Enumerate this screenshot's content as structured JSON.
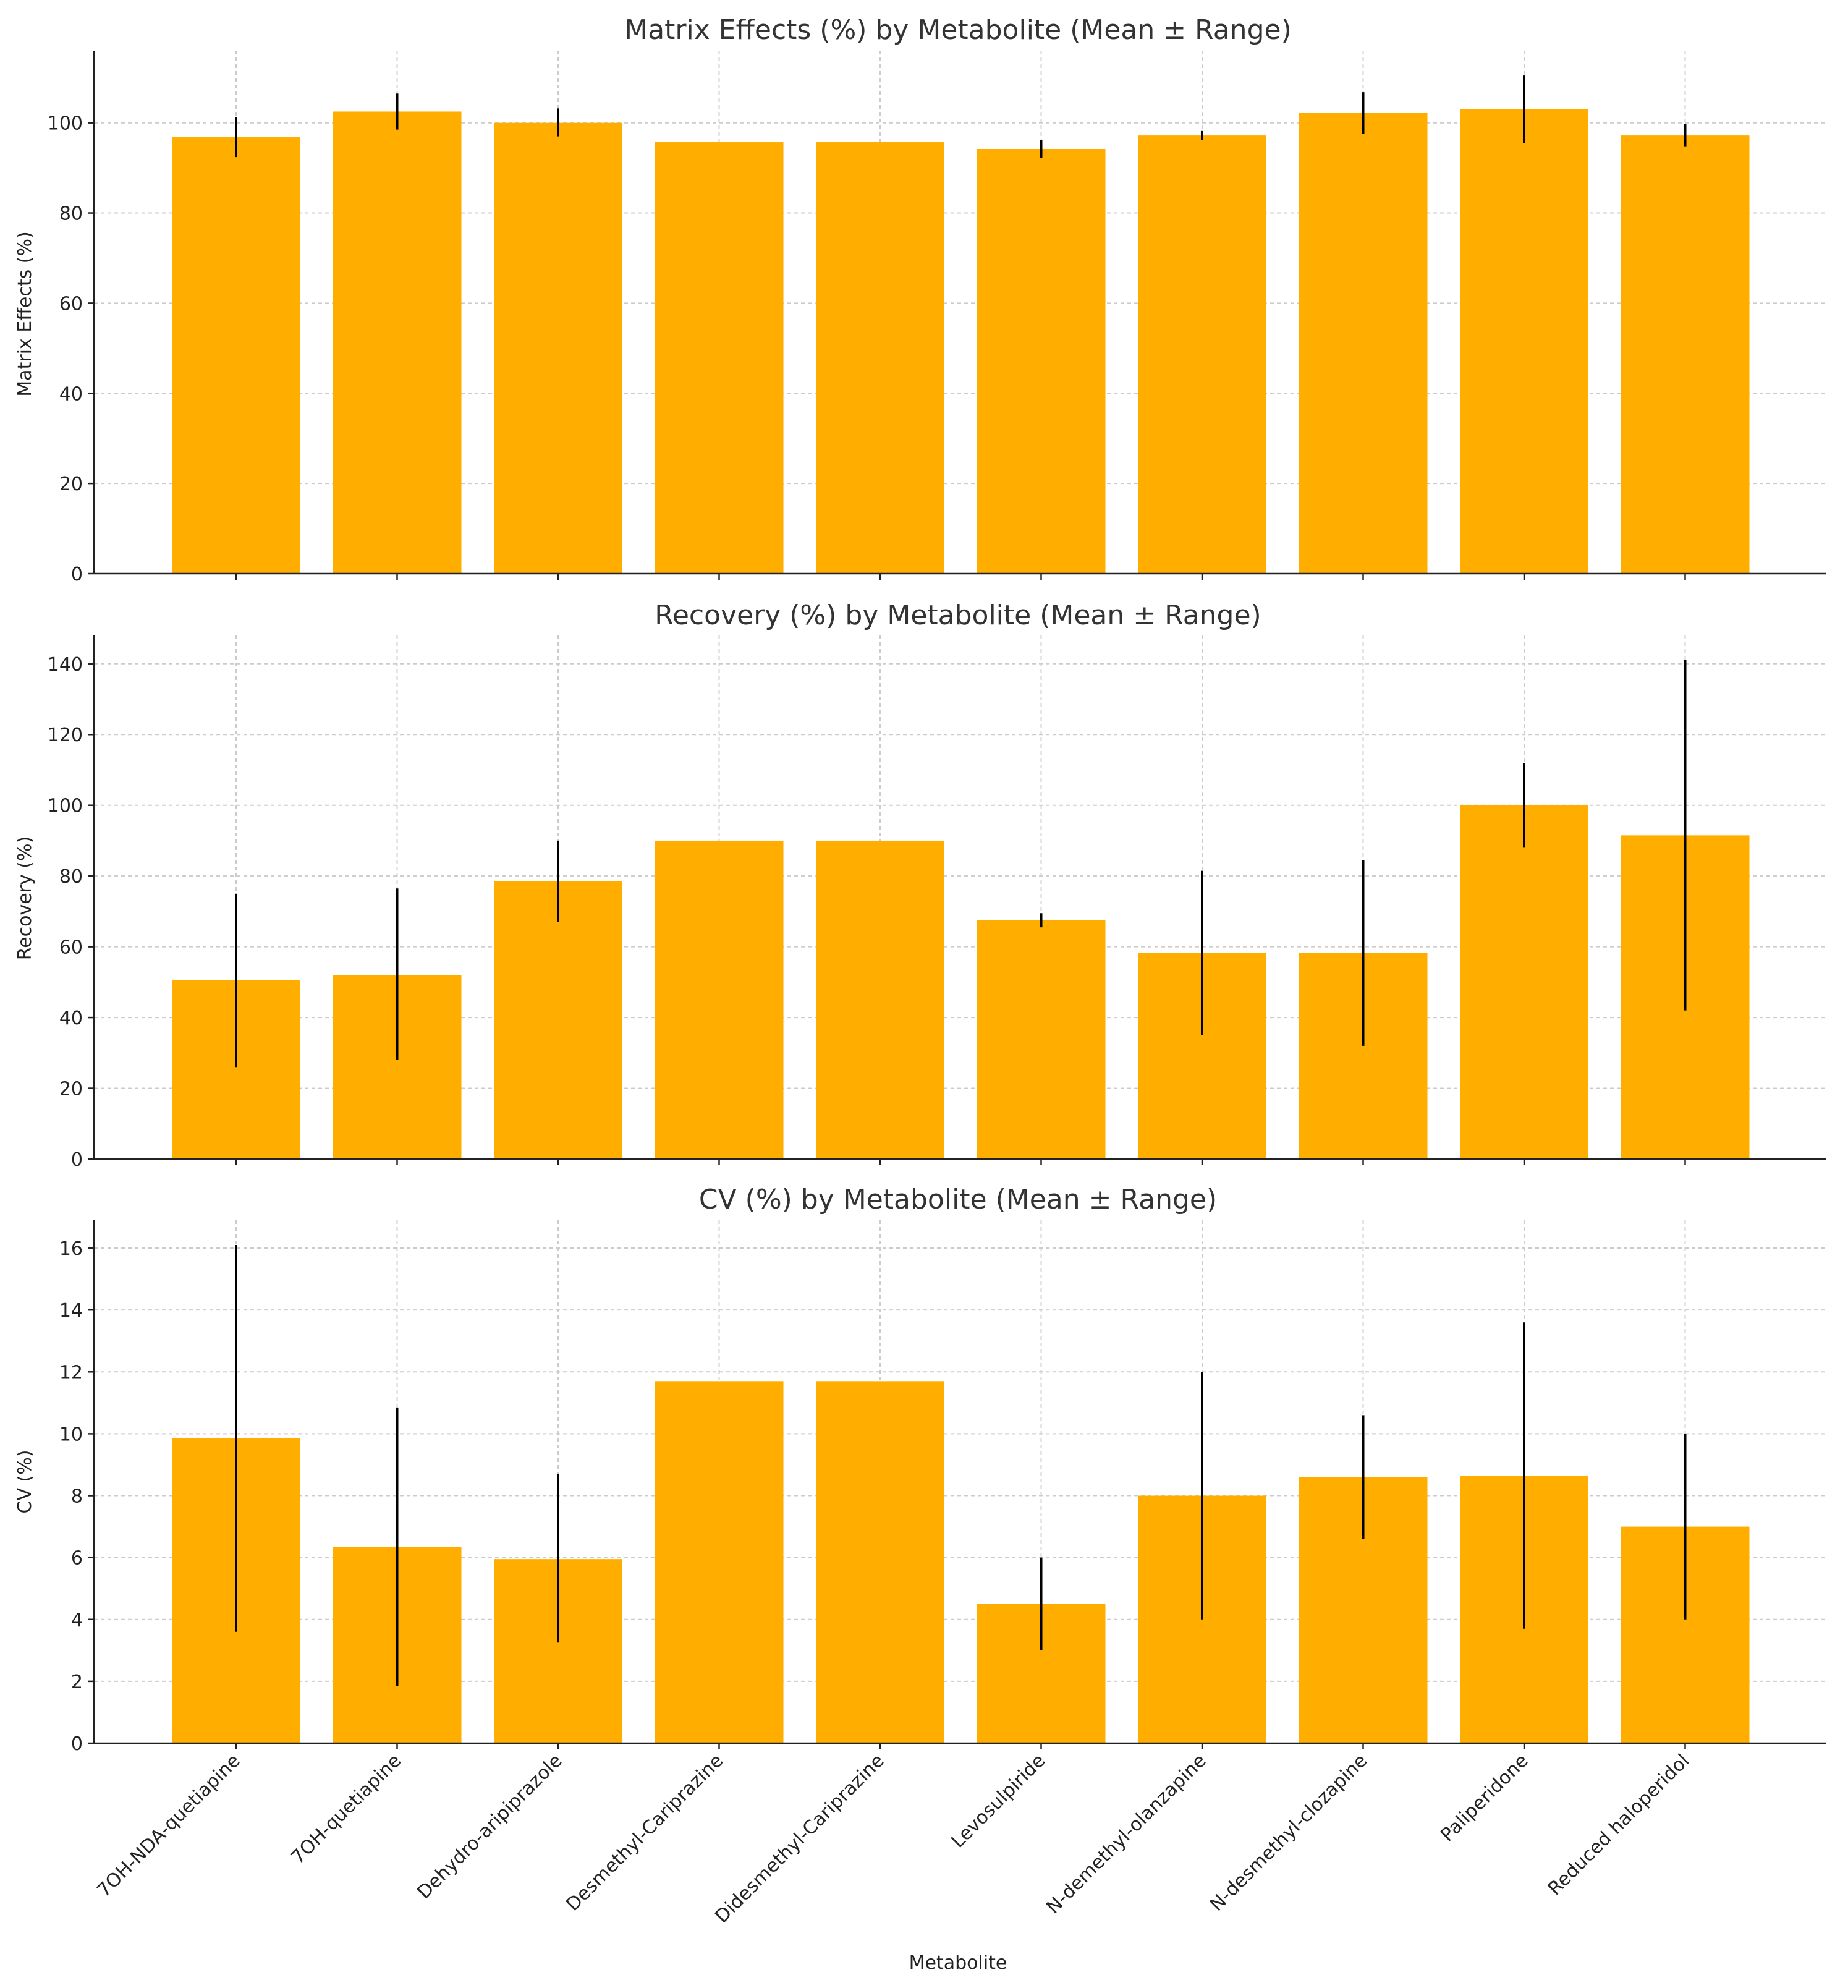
{
  "figure": {
    "xlabel": "Metabolite",
    "bar_color": "#ffae00",
    "error_color": "#000000",
    "grid_color": "#cccccc",
    "title_color": "#333333"
  },
  "chart_data": [
    {
      "type": "bar",
      "title": "Matrix Effects (%) by Metabolite (Mean ± Range)",
      "ylabel": "Matrix Effects (%)",
      "xlabel": "",
      "ylim": [
        0,
        116
      ],
      "yticks": [
        0,
        20,
        40,
        60,
        80,
        100
      ],
      "grid": true,
      "show_category_labels": false,
      "categories": [
        "7OH-NDA-quetiapine",
        "7OH-quetiapine",
        "Dehydro-aripiprazole",
        "Desmethyl-Cariprazine",
        "Didesmethyl-Cariprazine",
        "Levosulpiride",
        "N-demethyl-olanzapine",
        "N-desmethyl-clozapine",
        "Paliperidone",
        "Reduced haloperidol"
      ],
      "values": [
        96.8,
        102.5,
        100.0,
        95.7,
        95.7,
        94.2,
        97.2,
        102.2,
        103.0,
        97.2
      ],
      "error_low": [
        92.4,
        98.5,
        97.0,
        95.7,
        95.7,
        92.2,
        96.2,
        97.5,
        95.5,
        94.8
      ],
      "error_high": [
        101.3,
        106.5,
        103.2,
        95.7,
        95.7,
        96.2,
        98.2,
        106.8,
        110.5,
        99.7
      ]
    },
    {
      "type": "bar",
      "title": "Recovery (%) by Metabolite (Mean ± Range)",
      "ylabel": "Recovery (%)",
      "xlabel": "",
      "ylim": [
        0,
        148
      ],
      "yticks": [
        0,
        20,
        40,
        60,
        80,
        100,
        120,
        140
      ],
      "grid": true,
      "show_category_labels": false,
      "categories": [
        "7OH-NDA-quetiapine",
        "7OH-quetiapine",
        "Dehydro-aripiprazole",
        "Desmethyl-Cariprazine",
        "Didesmethyl-Cariprazine",
        "Levosulpiride",
        "N-demethyl-olanzapine",
        "N-desmethyl-clozapine",
        "Paliperidone",
        "Reduced haloperidol"
      ],
      "values": [
        50.5,
        52.0,
        78.5,
        90.0,
        90.0,
        67.5,
        58.3,
        58.3,
        100.0,
        91.5
      ],
      "error_low": [
        26.0,
        28.0,
        67.0,
        90.0,
        90.0,
        65.5,
        35.0,
        32.0,
        88.0,
        42.0
      ],
      "error_high": [
        75.0,
        76.5,
        90.0,
        90.0,
        90.0,
        69.5,
        81.5,
        84.5,
        112.0,
        141.0
      ]
    },
    {
      "type": "bar",
      "title": "CV (%) by Metabolite (Mean ± Range)",
      "ylabel": "CV (%)",
      "xlabel": "Metabolite",
      "ylim": [
        0,
        16.9
      ],
      "yticks": [
        0,
        2,
        4,
        6,
        8,
        10,
        12,
        14,
        16
      ],
      "grid": true,
      "show_category_labels": true,
      "categories": [
        "7OH-NDA-quetiapine",
        "7OH-quetiapine",
        "Dehydro-aripiprazole",
        "Desmethyl-Cariprazine",
        "Didesmethyl-Cariprazine",
        "Levosulpiride",
        "N-demethyl-olanzapine",
        "N-desmethyl-clozapine",
        "Paliperidone",
        "Reduced haloperidol"
      ],
      "values": [
        9.85,
        6.35,
        5.95,
        11.7,
        11.7,
        4.5,
        8.0,
        8.6,
        8.65,
        7.0
      ],
      "error_low": [
        3.6,
        1.85,
        3.25,
        11.7,
        11.7,
        3.0,
        4.0,
        6.6,
        3.7,
        4.0
      ],
      "error_high": [
        16.1,
        10.85,
        8.7,
        11.7,
        11.7,
        6.0,
        12.0,
        10.6,
        13.6,
        10.0
      ]
    }
  ]
}
